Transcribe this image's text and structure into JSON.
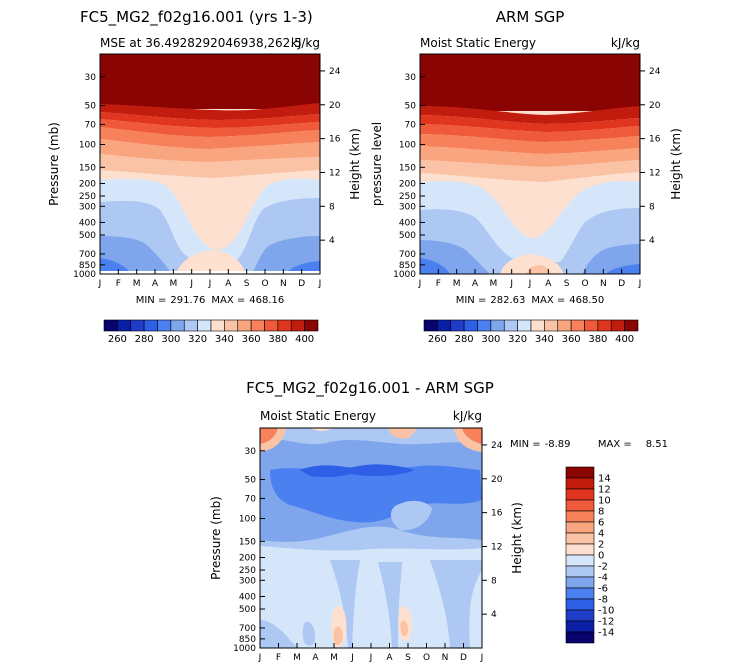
{
  "chart_data": [
    {
      "id": "p1",
      "type": "heatmap",
      "title": "FC5_MG2_f02g16.001 (yrs 1-3)",
      "subtitle_left": "MSE at 36.4928292046938,262.5",
      "subtitle_right": "kJ/kg",
      "xlabel": "",
      "ylabel": "Pressure (mb)",
      "ylabel_right": "Height (km)",
      "x_ticks": [
        "J",
        "F",
        "M",
        "A",
        "M",
        "J",
        "J",
        "A",
        "S",
        "O",
        "N",
        "D",
        "J"
      ],
      "y_ticks": [
        30,
        50,
        70,
        100,
        150,
        200,
        250,
        300,
        400,
        500,
        700,
        850,
        1000
      ],
      "y_ticks_right": [
        24,
        20,
        16,
        12,
        8,
        4
      ],
      "ylim": [
        1000,
        20
      ],
      "min": 291.76,
      "max": 468.16,
      "min_label": "MIN =",
      "min_text": "291.76",
      "max_label": "MAX =",
      "max_text": "468.16"
    },
    {
      "id": "p2",
      "type": "heatmap",
      "title": "ARM SGP",
      "subtitle_left": "Moist Static Energy",
      "subtitle_right": "kJ/kg",
      "xlabel": "",
      "ylabel": "pressure level",
      "ylabel_right": "Height (km)",
      "x_ticks": [
        "J",
        "F",
        "M",
        "A",
        "M",
        "J",
        "J",
        "A",
        "S",
        "O",
        "N",
        "D",
        "J"
      ],
      "y_ticks": [
        30,
        50,
        70,
        100,
        150,
        200,
        250,
        300,
        400,
        500,
        700,
        850,
        1000
      ],
      "y_ticks_right": [
        24,
        20,
        16,
        12,
        8,
        4
      ],
      "ylim": [
        1000,
        20
      ],
      "min": 282.63,
      "max": 468.5,
      "min_label": "MIN =",
      "min_text": "282.63",
      "max_label": "MAX =",
      "max_text": "468.50"
    },
    {
      "id": "p3",
      "type": "heatmap",
      "title": "FC5_MG2_f02g16.001 - ARM SGP",
      "subtitle_left": "Moist Static Energy",
      "subtitle_right": "kJ/kg",
      "xlabel": "",
      "ylabel": "Pressure (mb)",
      "ylabel_right": "Height (km)",
      "x_ticks": [
        "J",
        "F",
        "M",
        "A",
        "M",
        "J",
        "J",
        "A",
        "S",
        "O",
        "N",
        "D",
        "J"
      ],
      "y_ticks": [
        30,
        50,
        70,
        100,
        150,
        200,
        250,
        300,
        400,
        500,
        700,
        850,
        1000
      ],
      "y_ticks_right": [
        24,
        20,
        16,
        12,
        8,
        4
      ],
      "ylim": [
        1000,
        20
      ],
      "min": -8.89,
      "max": 8.51,
      "min_label": "MIN =",
      "min_text": "-8.89",
      "max_label": "MAX =",
      "max_text": "8.51"
    }
  ],
  "colorbar_top": {
    "labels": [
      "260",
      "280",
      "300",
      "320",
      "340",
      "360",
      "380",
      "400"
    ],
    "colors": [
      "#08046e",
      "#0b1ea6",
      "#1f3dc8",
      "#2f5fe6",
      "#4b80f0",
      "#7fa6ec",
      "#adc8f2",
      "#d6e6fa",
      "#fde0cf",
      "#fbc3a6",
      "#f9a57f",
      "#f6815b",
      "#ee5a3a",
      "#e0351e",
      "#c21c0e",
      "#8a0404"
    ]
  },
  "colorbar_diff": {
    "labels": [
      "14",
      "12",
      "10",
      "8",
      "6",
      "4",
      "2",
      "0",
      "-2",
      "-4",
      "-6",
      "-8",
      "-10",
      "-12",
      "-14"
    ],
    "colors": [
      "#8a0404",
      "#c21c0e",
      "#e0351e",
      "#ee5a3a",
      "#f6815b",
      "#f9a57f",
      "#fbc3a6",
      "#fde0cf",
      "#d6e6fa",
      "#adc8f2",
      "#7fa6ec",
      "#4b80f0",
      "#2f5fe6",
      "#1f3dc8",
      "#0b1ea6",
      "#08046e"
    ]
  }
}
